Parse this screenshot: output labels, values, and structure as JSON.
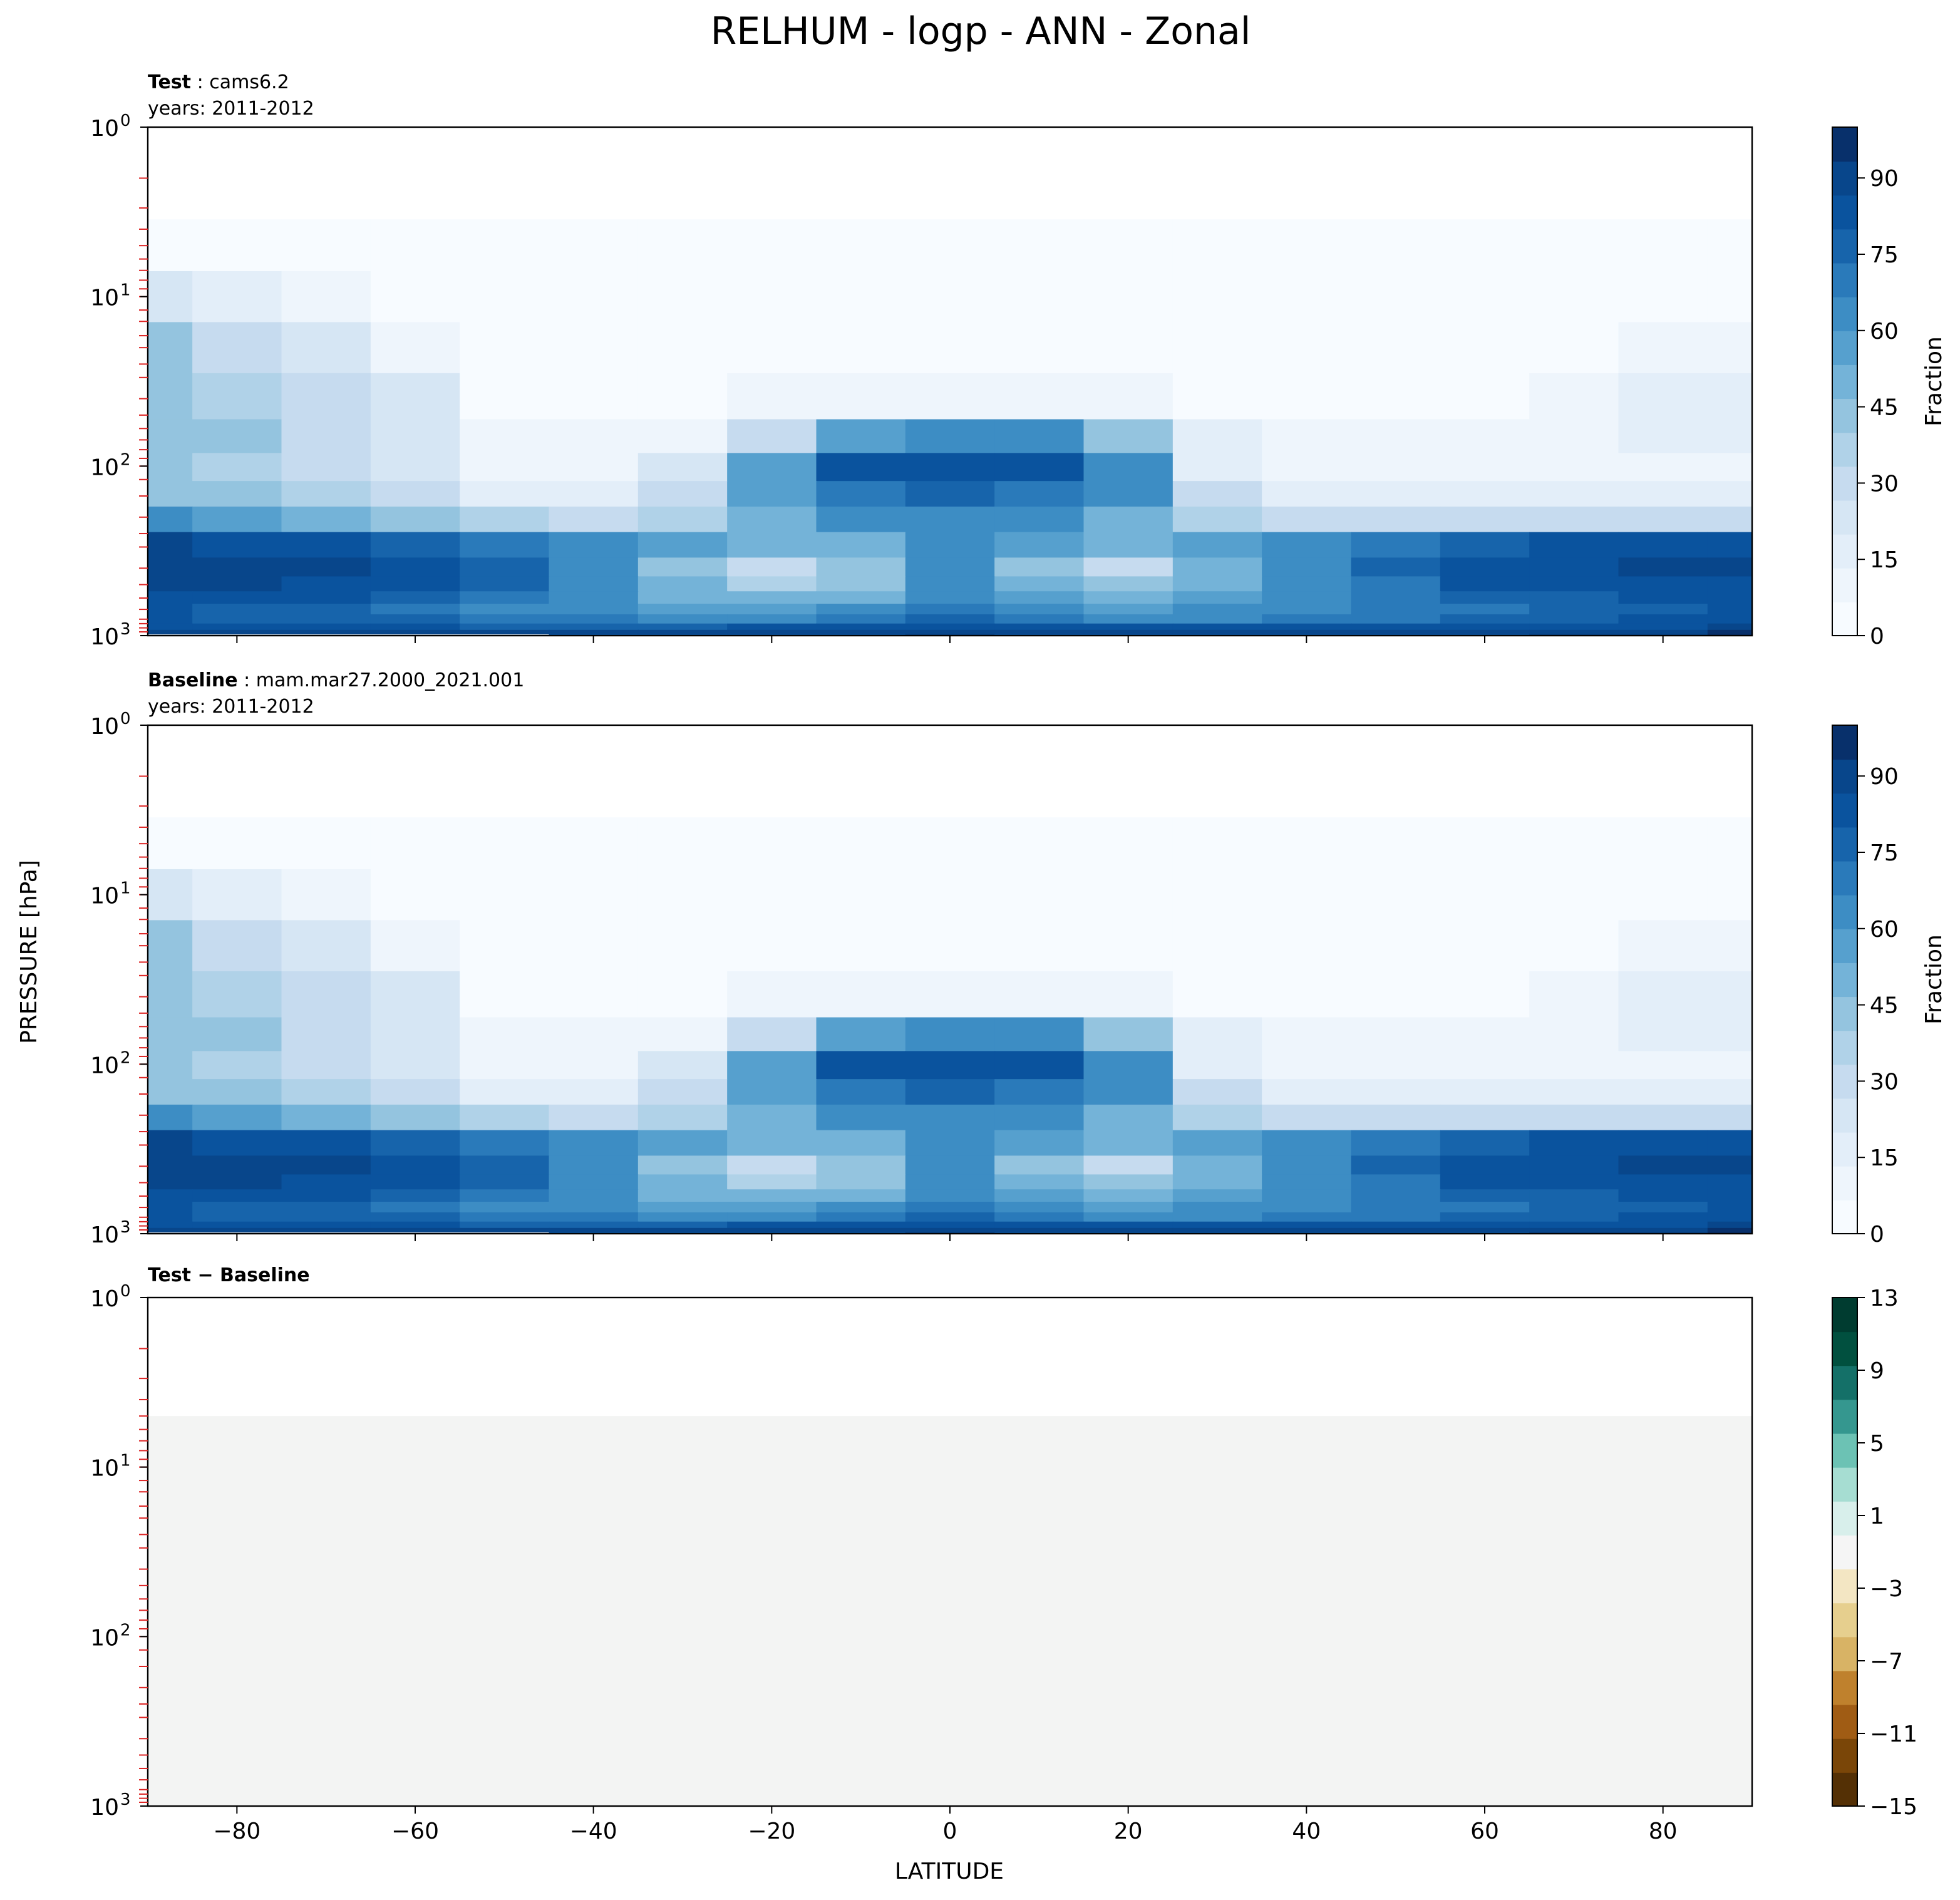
{
  "figure": {
    "suptitle": "RELHUM - logp - ANN - Zonal",
    "ylabel": "PRESSURE [hPa]",
    "xlabel": "LATITUDE"
  },
  "panels": [
    {
      "title_bold": "Test",
      "title_rest": ": cams6.2",
      "subtitle": "years: 2011-2012",
      "colorbar": {
        "label": "Fraction",
        "ticks": [
          "0",
          "15",
          "30",
          "45",
          "60",
          "75",
          "90"
        ],
        "tick_values": [
          0,
          15,
          30,
          45,
          60,
          75,
          90
        ],
        "range": [
          0,
          100
        ],
        "colormap": "Blues"
      }
    },
    {
      "title_bold": "Baseline",
      "title_rest": ": mam.mar27.2000_2021.001",
      "subtitle": "years: 2011-2012",
      "colorbar": {
        "label": "Fraction",
        "ticks": [
          "0",
          "15",
          "30",
          "45",
          "60",
          "75",
          "90"
        ],
        "tick_values": [
          0,
          15,
          30,
          45,
          60,
          75,
          90
        ],
        "range": [
          0,
          100
        ],
        "colormap": "Blues"
      }
    },
    {
      "title_bold": "Test − Baseline",
      "title_rest": "",
      "subtitle": "",
      "colorbar": {
        "label": "",
        "ticks": [
          "13",
          "9",
          "5",
          "1",
          "−3",
          "−7",
          "−11",
          "−15"
        ],
        "tick_values": [
          13,
          9,
          5,
          1,
          -3,
          -7,
          -11,
          -15
        ],
        "range": [
          -15,
          13
        ],
        "colormap": "BrBG"
      }
    }
  ],
  "axes": {
    "x_ticks": [
      "−80",
      "−60",
      "−40",
      "−20",
      "0",
      "20",
      "40",
      "60",
      "80"
    ],
    "y_ticks": [
      "10",
      "10",
      "10",
      "10"
    ],
    "y_tick_exponents": [
      "0",
      "1",
      "2",
      "3"
    ]
  },
  "colors": {
    "blues": [
      "#f7fbff",
      "#eef5fc",
      "#e3eef9",
      "#d6e6f4",
      "#c6dbef",
      "#b0d2e8",
      "#94c4df",
      "#74b3d8",
      "#56a0ce",
      "#3d8dc4",
      "#2a7aba",
      "#1764ab",
      "#0a539e",
      "#08468b",
      "#08306b"
    ],
    "brbg": [
      "#543005",
      "#7a4608",
      "#a05c14",
      "#bf812d",
      "#d8b365",
      "#e6cf8e",
      "#f3e6c3",
      "#f5f5f5",
      "#d8efeb",
      "#a6ddd2",
      "#6cc2b4",
      "#35978f",
      "#147068",
      "#01503f",
      "#003c30"
    ]
  },
  "chart_data": [
    {
      "type": "heatmap",
      "title": "Test: cams6.2",
      "xlabel": "LATITUDE",
      "ylabel": "PRESSURE [hPa]",
      "xlim": [
        -90,
        90
      ],
      "ylim": [
        1000,
        1
      ],
      "yscale": "log",
      "colorbar_label": "Fraction",
      "clim": [
        0,
        100
      ],
      "lat": [
        -90,
        -80,
        -70,
        -60,
        -50,
        -40,
        -30,
        -20,
        -10,
        0,
        10,
        20,
        30,
        40,
        50,
        60,
        70,
        80,
        90
      ],
      "lev": [
        5,
        10,
        20,
        40,
        70,
        100,
        150,
        200,
        300,
        400,
        500,
        600,
        700,
        800,
        900,
        950,
        1000
      ],
      "values": [
        [
          3,
          3,
          3,
          3,
          3,
          3,
          3,
          3,
          3,
          3,
          3,
          3,
          3,
          3,
          3,
          3,
          3,
          3,
          3
        ],
        [
          25,
          18,
          10,
          6,
          3,
          3,
          3,
          3,
          3,
          3,
          3,
          3,
          3,
          3,
          3,
          3,
          3,
          4,
          5
        ],
        [
          40,
          30,
          22,
          12,
          4,
          4,
          4,
          4,
          4,
          4,
          4,
          4,
          4,
          4,
          4,
          4,
          6,
          10,
          12
        ],
        [
          45,
          38,
          30,
          20,
          6,
          5,
          6,
          7,
          10,
          10,
          10,
          7,
          6,
          5,
          5,
          6,
          10,
          15,
          18
        ],
        [
          42,
          40,
          32,
          22,
          8,
          8,
          12,
          30,
          55,
          60,
          60,
          40,
          14,
          8,
          7,
          8,
          10,
          15,
          16
        ],
        [
          40,
          38,
          32,
          24,
          10,
          12,
          20,
          55,
          80,
          85,
          85,
          65,
          18,
          10,
          8,
          8,
          8,
          12,
          12
        ],
        [
          45,
          42,
          36,
          28,
          18,
          18,
          30,
          58,
          72,
          74,
          72,
          60,
          28,
          18,
          15,
          14,
          14,
          14,
          14
        ],
        [
          60,
          55,
          50,
          45,
          35,
          32,
          38,
          52,
          60,
          62,
          60,
          50,
          36,
          30,
          28,
          28,
          28,
          28,
          28
        ],
        [
          88,
          86,
          82,
          76,
          70,
          64,
          56,
          50,
          52,
          60,
          56,
          48,
          55,
          64,
          70,
          76,
          80,
          82,
          84
        ],
        [
          92,
          90,
          88,
          82,
          76,
          66,
          45,
          30,
          40,
          65,
          45,
          32,
          50,
          66,
          74,
          82,
          86,
          88,
          88
        ],
        [
          90,
          88,
          86,
          80,
          74,
          64,
          48,
          38,
          45,
          66,
          48,
          40,
          52,
          64,
          72,
          80,
          84,
          86,
          86
        ],
        [
          85,
          84,
          80,
          74,
          68,
          60,
          52,
          48,
          52,
          66,
          54,
          50,
          56,
          62,
          68,
          74,
          78,
          80,
          82
        ],
        [
          80,
          78,
          76,
          72,
          66,
          62,
          58,
          58,
          62,
          70,
          62,
          58,
          60,
          64,
          68,
          72,
          76,
          78,
          80
        ],
        [
          80,
          78,
          76,
          74,
          70,
          68,
          66,
          66,
          70,
          76,
          70,
          66,
          66,
          68,
          72,
          74,
          78,
          80,
          82
        ],
        [
          86,
          84,
          82,
          80,
          78,
          78,
          78,
          80,
          82,
          86,
          82,
          80,
          80,
          80,
          80,
          82,
          84,
          86,
          88
        ],
        [
          90,
          88,
          88,
          88,
          88,
          88,
          88,
          88,
          90,
          92,
          90,
          88,
          88,
          88,
          88,
          88,
          90,
          92,
          96
        ],
        [
          0,
          0,
          0,
          0,
          0,
          85,
          85,
          85,
          86,
          88,
          86,
          85,
          85,
          85,
          85,
          85,
          88,
          92,
          96
        ]
      ]
    },
    {
      "type": "heatmap",
      "title": "Baseline: mam.mar27.2000_2021.001",
      "xlabel": "LATITUDE",
      "ylabel": "PRESSURE [hPa]",
      "xlim": [
        -90,
        90
      ],
      "ylim": [
        1000,
        1
      ],
      "yscale": "log",
      "colorbar_label": "Fraction",
      "clim": [
        0,
        100
      ],
      "lat": [
        -90,
        -80,
        -70,
        -60,
        -50,
        -40,
        -30,
        -20,
        -10,
        0,
        10,
        20,
        30,
        40,
        50,
        60,
        70,
        80,
        90
      ],
      "lev": [
        5,
        10,
        20,
        40,
        70,
        100,
        150,
        200,
        300,
        400,
        500,
        600,
        700,
        800,
        900,
        950,
        1000
      ],
      "values": [
        [
          3,
          3,
          3,
          3,
          3,
          3,
          3,
          3,
          3,
          3,
          3,
          3,
          3,
          3,
          3,
          3,
          3,
          3,
          3
        ],
        [
          25,
          18,
          10,
          6,
          3,
          3,
          3,
          3,
          3,
          3,
          3,
          3,
          3,
          3,
          3,
          3,
          3,
          4,
          5
        ],
        [
          40,
          30,
          22,
          12,
          4,
          4,
          4,
          4,
          4,
          4,
          4,
          4,
          4,
          4,
          4,
          4,
          6,
          10,
          12
        ],
        [
          45,
          38,
          30,
          20,
          6,
          5,
          6,
          7,
          10,
          10,
          10,
          7,
          6,
          5,
          5,
          6,
          10,
          15,
          18
        ],
        [
          42,
          40,
          32,
          22,
          8,
          8,
          12,
          30,
          55,
          60,
          60,
          40,
          14,
          8,
          7,
          8,
          10,
          15,
          16
        ],
        [
          40,
          38,
          32,
          24,
          10,
          12,
          20,
          55,
          80,
          85,
          85,
          65,
          18,
          10,
          8,
          8,
          8,
          12,
          12
        ],
        [
          45,
          42,
          36,
          28,
          18,
          18,
          30,
          58,
          72,
          74,
          72,
          60,
          28,
          18,
          15,
          14,
          14,
          14,
          14
        ],
        [
          60,
          55,
          50,
          45,
          35,
          32,
          38,
          52,
          60,
          62,
          60,
          50,
          36,
          30,
          28,
          28,
          28,
          28,
          28
        ],
        [
          88,
          86,
          82,
          76,
          70,
          64,
          56,
          50,
          52,
          60,
          56,
          48,
          55,
          64,
          70,
          76,
          80,
          82,
          84
        ],
        [
          92,
          90,
          88,
          82,
          76,
          66,
          45,
          30,
          40,
          65,
          45,
          32,
          50,
          66,
          74,
          82,
          86,
          88,
          88
        ],
        [
          90,
          88,
          86,
          80,
          74,
          64,
          48,
          38,
          45,
          66,
          48,
          40,
          52,
          64,
          72,
          80,
          84,
          86,
          86
        ],
        [
          85,
          84,
          80,
          74,
          68,
          60,
          52,
          48,
          52,
          66,
          54,
          50,
          56,
          62,
          68,
          74,
          78,
          80,
          82
        ],
        [
          80,
          78,
          76,
          72,
          66,
          62,
          58,
          58,
          62,
          70,
          62,
          58,
          60,
          64,
          68,
          72,
          76,
          78,
          80
        ],
        [
          80,
          78,
          76,
          74,
          70,
          68,
          66,
          66,
          70,
          76,
          70,
          66,
          66,
          68,
          72,
          74,
          78,
          80,
          82
        ],
        [
          86,
          84,
          82,
          80,
          78,
          78,
          78,
          80,
          82,
          86,
          82,
          80,
          80,
          80,
          80,
          82,
          84,
          86,
          88
        ],
        [
          90,
          88,
          88,
          88,
          88,
          88,
          88,
          88,
          90,
          92,
          90,
          88,
          88,
          88,
          88,
          88,
          90,
          92,
          96
        ],
        [
          0,
          0,
          0,
          0,
          0,
          85,
          85,
          85,
          86,
          88,
          86,
          85,
          85,
          85,
          85,
          85,
          88,
          92,
          96
        ]
      ]
    },
    {
      "type": "heatmap",
      "title": "Test − Baseline",
      "xlabel": "LATITUDE",
      "ylabel": "PRESSURE [hPa]",
      "xlim": [
        -90,
        90
      ],
      "ylim": [
        1000,
        1
      ],
      "yscale": "log",
      "clim": [
        -15,
        13
      ],
      "lat": [
        -90,
        -80,
        -70,
        -60,
        -50,
        -40,
        -30,
        -20,
        -10,
        0,
        10,
        20,
        30,
        40,
        50,
        60,
        70,
        80,
        90
      ],
      "lev": [
        5,
        10,
        20,
        40,
        70,
        100,
        150,
        200,
        300,
        400,
        500,
        600,
        700,
        800,
        900,
        950,
        1000
      ],
      "values_uniform": 0
    }
  ]
}
